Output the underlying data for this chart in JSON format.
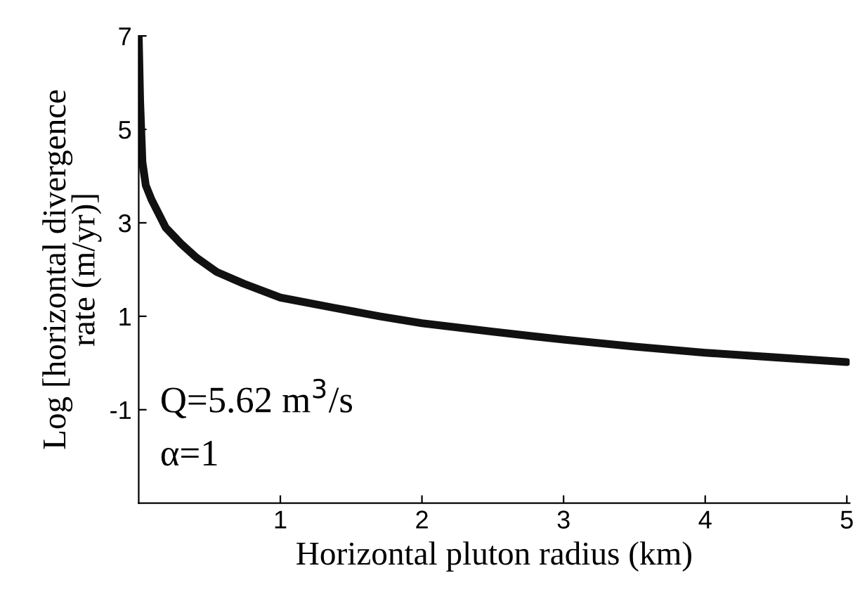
{
  "chart_data": {
    "type": "line",
    "xlabel": "Horizontal pluton radius (km)",
    "ylabel": "Log [horizontal divergence\nrate (m/yr)]",
    "x": [
      0.0,
      0.01,
      0.026,
      0.05,
      0.09,
      0.19,
      0.3,
      0.41,
      0.55,
      0.74,
      1.0,
      1.38,
      1.7,
      2.0,
      2.5,
      3.0,
      3.5,
      4.0,
      4.5,
      5.0
    ],
    "series": [
      {
        "color": "#111111",
        "values": [
          7.0,
          5.6,
          4.3,
          3.8,
          3.5,
          2.9,
          2.55,
          2.25,
          1.95,
          1.7,
          1.4,
          1.18,
          1.0,
          0.85,
          0.67,
          0.5,
          0.35,
          0.22,
          0.12,
          0.02
        ]
      }
    ],
    "xlim": [
      0,
      5.02
    ],
    "ylim": [
      -3,
      7
    ],
    "xticks": [
      1,
      2,
      3,
      4,
      5
    ],
    "yticks": [
      7,
      5,
      3,
      1,
      {
        "value": -1,
        "label": "-1"
      }
    ],
    "annotations": [
      "Q=5.62 m$^{3}$/s",
      "α=1"
    ],
    "grid": false,
    "legend": false,
    "marker": "none",
    "line_style": "solid"
  }
}
